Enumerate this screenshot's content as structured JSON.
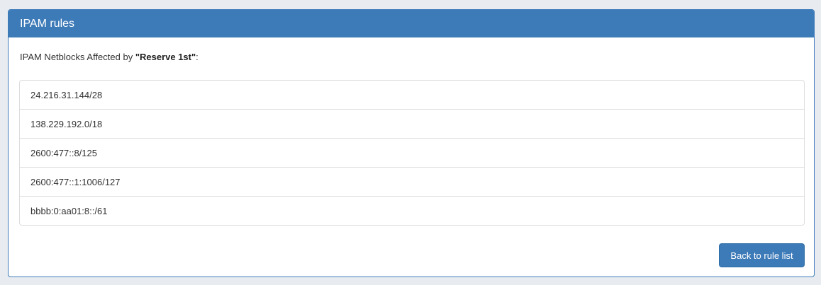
{
  "panel": {
    "title": "IPAM rules"
  },
  "intro": {
    "prefix": "IPAM Netblocks Affected by ",
    "rule_name": "\"Reserve 1st\"",
    "suffix": ":"
  },
  "netblocks": [
    "24.216.31.144/28",
    "138.229.192.0/18",
    "2600:477::8/125",
    "2600:477::1:1006/127",
    "bbbb:0:aa01:8::/61"
  ],
  "actions": {
    "back_label": "Back to rule list"
  },
  "colors": {
    "primary": "#3d7ab8",
    "background": "#e8ecf1"
  }
}
